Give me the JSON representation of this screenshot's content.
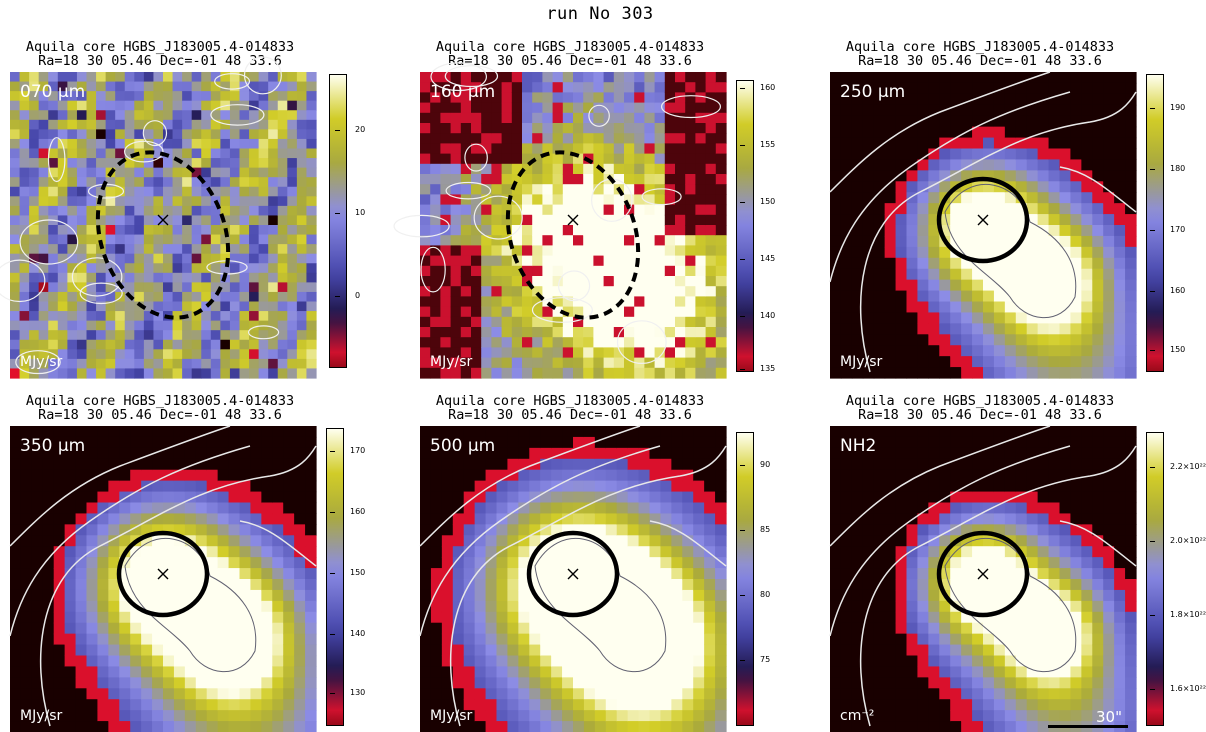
{
  "figure": {
    "title": "run No 303"
  },
  "panels": [
    {
      "id": "p70",
      "title1": "Aquila core HGBS_J183005.4-014833",
      "title2": "Ra=18 30 05.46 Dec=-01 48 33.6",
      "band": "070 μm",
      "unit": "MJy/sr",
      "style": "noisy",
      "aperture": "dashed",
      "ticks": [
        "20",
        "10",
        "0"
      ]
    },
    {
      "id": "p160",
      "title1": "Aquila core HGBS_J183005.4-014833",
      "title2": "Ra=18 30 05.46 Dec=-01 48 33.6",
      "band": "160 μm",
      "unit": "MJy/sr",
      "style": "mixed",
      "aperture": "dashed",
      "ticks": [
        "160",
        "155",
        "150",
        "145",
        "140",
        "135"
      ]
    },
    {
      "id": "p250",
      "title1": "Aquila core HGBS_J183005.4-014833",
      "title2": "Ra=18 30 05.46 Dec=-01 48 33.6",
      "band": "250 μm",
      "unit": "MJy/sr",
      "style": "smooth",
      "aperture": "solid",
      "ticks": [
        "190",
        "180",
        "170",
        "160",
        "150"
      ]
    },
    {
      "id": "p350",
      "title1": "Aquila core HGBS_J183005.4-014833",
      "title2": "Ra=18 30 05.46 Dec=-01 48 33.6",
      "band": "350 μm",
      "unit": "MJy/sr",
      "style": "smooth",
      "aperture": "solid",
      "ticks": [
        "170",
        "160",
        "150",
        "140",
        "130"
      ]
    },
    {
      "id": "p500",
      "title1": "Aquila core HGBS_J183005.4-014833",
      "title2": "Ra=18 30 05.46 Dec=-01 48 33.6",
      "band": "500 μm",
      "unit": "MJy/sr",
      "style": "smooth",
      "aperture": "solid",
      "ticks": [
        "90",
        "85",
        "80",
        "75"
      ]
    },
    {
      "id": "pnh2",
      "title1": "Aquila core HGBS_J183005.4-014833",
      "title2": "Ra=18 30 05.46 Dec=-01 48 33.6",
      "band": "NH2",
      "unit": "cm⁻²",
      "style": "smooth",
      "aperture": "solid",
      "scale": "30\"",
      "ticks": [
        "2.2×10²²",
        "2.0×10²²",
        "1.8×10²²",
        "1.6×10²²"
      ]
    }
  ],
  "colors": {
    "background": "#1a0000",
    "red": "#e8102a",
    "blue": "#7070d8",
    "yellow": "#c8c020",
    "white": "#ffffff"
  }
}
